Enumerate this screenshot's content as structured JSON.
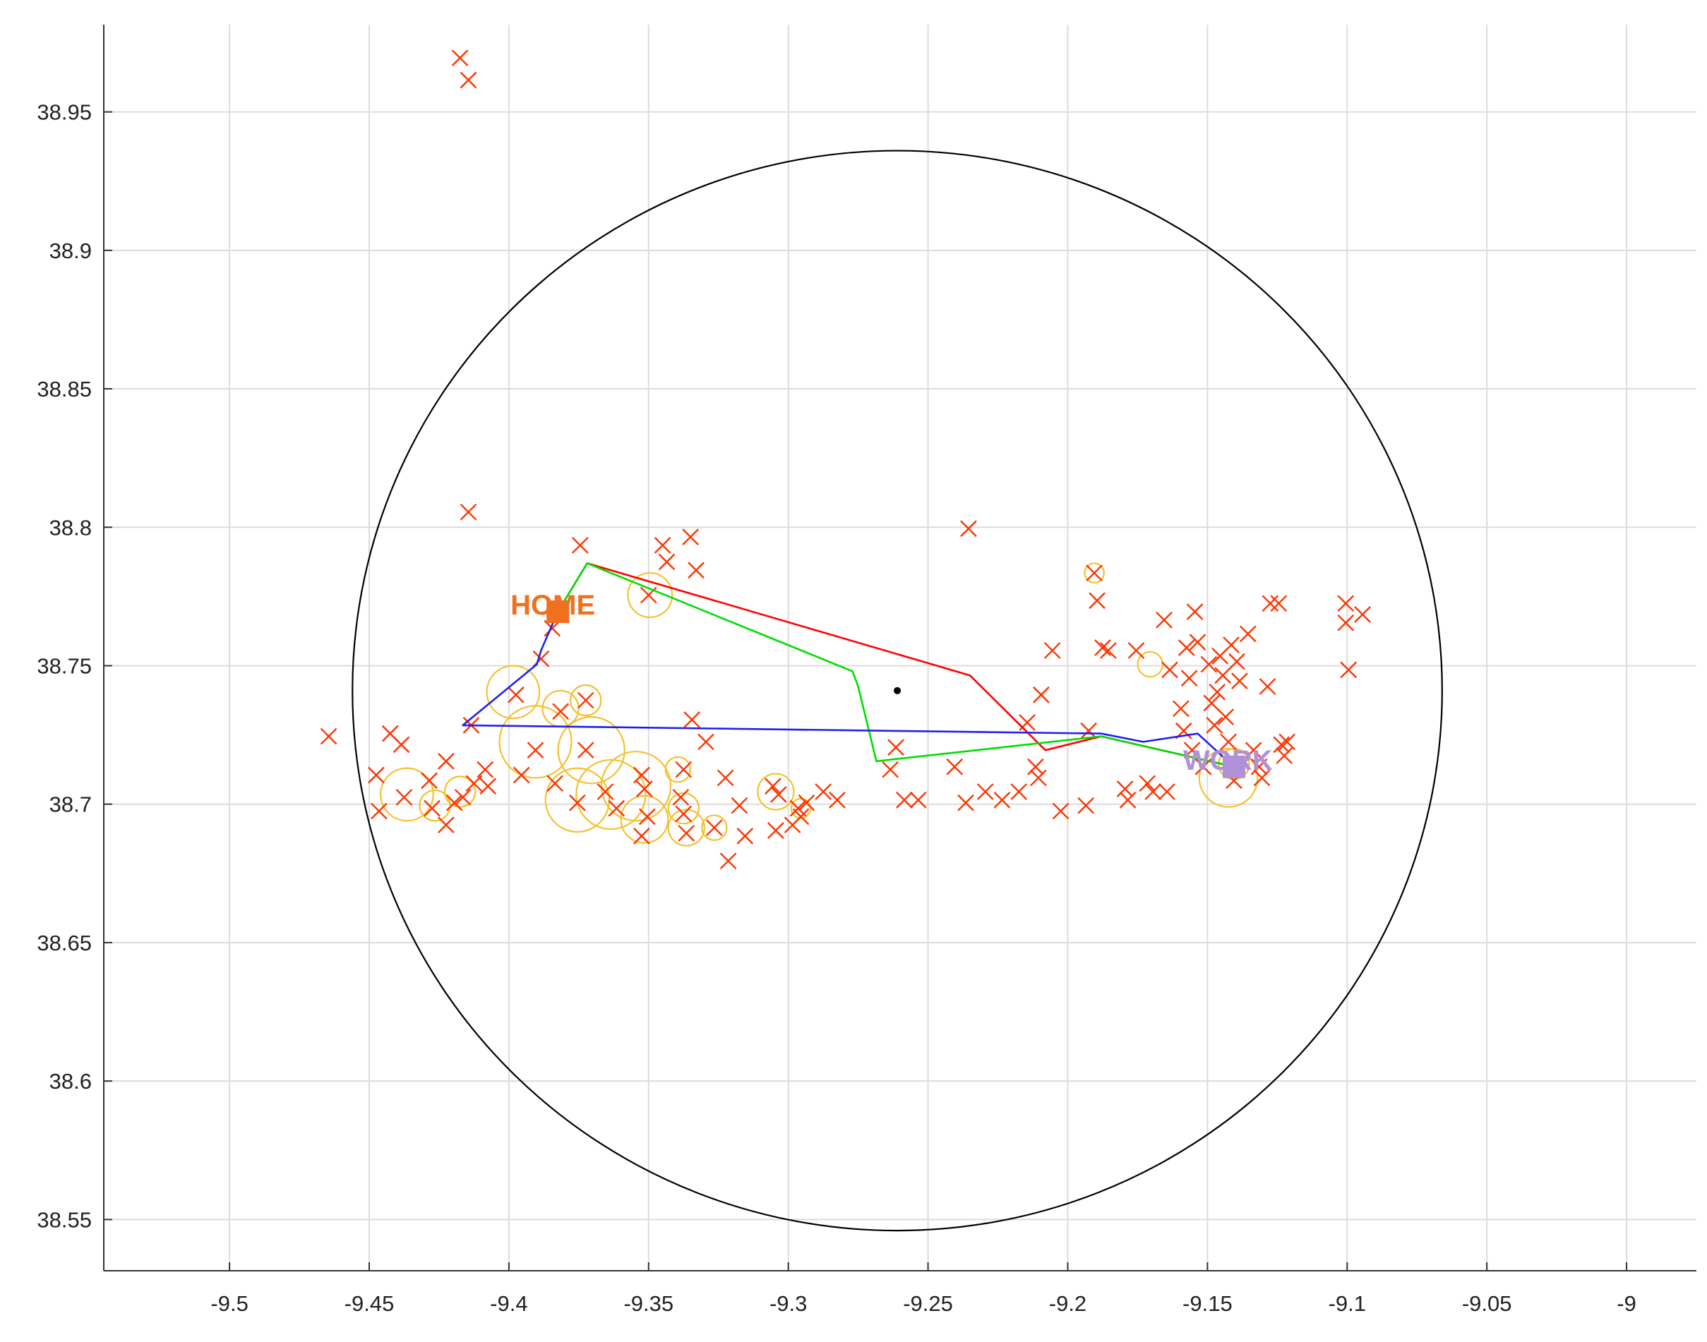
{
  "chart_data": {
    "type": "scatter",
    "title": "",
    "xlabel": "",
    "ylabel": "",
    "xlim": [
      -9.545,
      -8.975
    ],
    "ylim": [
      38.5315,
      38.9815
    ],
    "grid": true,
    "x_ticks": [
      -9.5,
      -9.45,
      -9.4,
      -9.35,
      -9.3,
      -9.25,
      -9.2,
      -9.15,
      -9.1,
      -9.05,
      -9.0
    ],
    "x_tick_labels": [
      "-9.5",
      "-9.45",
      "-9.4",
      "-9.35",
      "-9.3",
      "-9.25",
      "-9.2",
      "-9.15",
      "-9.1",
      "-9.05",
      "-9"
    ],
    "y_ticks": [
      38.55,
      38.6,
      38.65,
      38.7,
      38.75,
      38.8,
      38.85,
      38.9,
      38.95
    ],
    "y_tick_labels": [
      "38.55",
      "38.6",
      "38.65",
      "38.7",
      "38.75",
      "38.8",
      "38.85",
      "38.9",
      "38.95"
    ],
    "colors": {
      "cross": "#ff3300",
      "circle": "#f5c030",
      "big_circle": "#000000",
      "route_red": "#ff0000",
      "route_green": "#00dd00",
      "route_blue": "#2020ee",
      "home": "#f07020",
      "work": "#b090d8",
      "center": "#000000"
    },
    "big_circle": {
      "center": [
        -9.261,
        38.741
      ],
      "radius": 0.195
    },
    "center_point": [
      -9.261,
      38.741
    ],
    "home": {
      "label": "HOME",
      "point": [
        -9.3825,
        38.7695
      ]
    },
    "work": {
      "label": "WORK",
      "point": [
        -9.1405,
        38.7135
      ]
    },
    "routes": [
      {
        "color": "route_red",
        "points": [
          [
            -9.3825,
            38.7695
          ],
          [
            -9.372,
            38.787
          ],
          [
            -9.235,
            38.7465
          ],
          [
            -9.208,
            38.7195
          ],
          [
            -9.188,
            38.7245
          ],
          [
            -9.1405,
            38.7135
          ]
        ]
      },
      {
        "color": "route_green",
        "points": [
          [
            -9.3825,
            38.7695
          ],
          [
            -9.372,
            38.787
          ],
          [
            -9.277,
            38.748
          ],
          [
            -9.275,
            38.7425
          ],
          [
            -9.2685,
            38.7155
          ],
          [
            -9.188,
            38.7245
          ],
          [
            -9.1405,
            38.7135
          ]
        ]
      },
      {
        "color": "route_blue",
        "points": [
          [
            -9.3825,
            38.7695
          ],
          [
            -9.3885,
            38.7555
          ],
          [
            -9.39,
            38.7505
          ],
          [
            -9.4165,
            38.7285
          ],
          [
            -9.188,
            38.7255
          ],
          [
            -9.173,
            38.7225
          ],
          [
            -9.1535,
            38.7255
          ],
          [
            -9.1405,
            38.7135
          ]
        ]
      }
    ],
    "crosses": [
      [
        -9.4175,
        38.9695
      ],
      [
        -9.4145,
        38.9615
      ],
      [
        -9.4145,
        38.8055
      ],
      [
        -9.3745,
        38.7935
      ],
      [
        -9.345,
        38.7935
      ],
      [
        -9.3435,
        38.7875
      ],
      [
        -9.335,
        38.7965
      ],
      [
        -9.333,
        38.7845
      ],
      [
        -9.35,
        38.7755
      ],
      [
        -9.3845,
        38.7635
      ],
      [
        -9.3885,
        38.7525
      ],
      [
        -9.4645,
        38.7245
      ],
      [
        -9.4425,
        38.7255
      ],
      [
        -9.4385,
        38.7215
      ],
      [
        -9.4225,
        38.7155
      ],
      [
        -9.4475,
        38.7105
      ],
      [
        -9.4465,
        38.6975
      ],
      [
        -9.4375,
        38.7025
      ],
      [
        -9.4285,
        38.7085
      ],
      [
        -9.4275,
        38.6985
      ],
      [
        -9.4225,
        38.6925
      ],
      [
        -9.4195,
        38.7005
      ],
      [
        -9.4165,
        38.7025
      ],
      [
        -9.4125,
        38.7075
      ],
      [
        -9.4085,
        38.7125
      ],
      [
        -9.4075,
        38.7065
      ],
      [
        -9.4135,
        38.7285
      ],
      [
        -9.3975,
        38.7395
      ],
      [
        -9.3955,
        38.7105
      ],
      [
        -9.3905,
        38.7195
      ],
      [
        -9.3815,
        38.7335
      ],
      [
        -9.3835,
        38.7075
      ],
      [
        -9.3725,
        38.7375
      ],
      [
        -9.3725,
        38.7195
      ],
      [
        -9.3755,
        38.7005
      ],
      [
        -9.3655,
        38.7045
      ],
      [
        -9.3615,
        38.6985
      ],
      [
        -9.3525,
        38.7105
      ],
      [
        -9.3515,
        38.7055
      ],
      [
        -9.3505,
        38.6955
      ],
      [
        -9.3525,
        38.6885
      ],
      [
        -9.3375,
        38.7125
      ],
      [
        -9.3385,
        38.7025
      ],
      [
        -9.3375,
        38.6965
      ],
      [
        -9.3365,
        38.6895
      ],
      [
        -9.3345,
        38.7305
      ],
      [
        -9.3295,
        38.7225
      ],
      [
        -9.3265,
        38.6915
      ],
      [
        -9.3225,
        38.7095
      ],
      [
        -9.3175,
        38.6995
      ],
      [
        -9.3155,
        38.6885
      ],
      [
        -9.3215,
        38.6795
      ],
      [
        -9.3055,
        38.7065
      ],
      [
        -9.3035,
        38.7035
      ],
      [
        -9.3045,
        38.6905
      ],
      [
        -9.2985,
        38.6925
      ],
      [
        -9.2955,
        38.6955
      ],
      [
        -9.2935,
        38.7005
      ],
      [
        -9.2875,
        38.7045
      ],
      [
        -9.2825,
        38.7015
      ],
      [
        -9.2965,
        38.6985
      ],
      [
        -9.2615,
        38.7205
      ],
      [
        -9.2635,
        38.7125
      ],
      [
        -9.2585,
        38.7015
      ],
      [
        -9.2535,
        38.7015
      ],
      [
        -9.2405,
        38.7135
      ],
      [
        -9.2365,
        38.7005
      ],
      [
        -9.2295,
        38.7045
      ],
      [
        -9.2235,
        38.7015
      ],
      [
        -9.2175,
        38.7045
      ],
      [
        -9.2145,
        38.7295
      ],
      [
        -9.2115,
        38.7135
      ],
      [
        -9.2105,
        38.7095
      ],
      [
        -9.2095,
        38.7395
      ],
      [
        -9.2025,
        38.6975
      ],
      [
        -9.2055,
        38.7555
      ],
      [
        -9.1925,
        38.7265
      ],
      [
        -9.1935,
        38.6995
      ],
      [
        -9.2355,
        38.7995
      ],
      [
        -9.1905,
        38.7835
      ],
      [
        -9.1895,
        38.7735
      ],
      [
        -9.1875,
        38.7565
      ],
      [
        -9.1855,
        38.7555
      ],
      [
        -9.1795,
        38.7055
      ],
      [
        -9.1785,
        38.7015
      ],
      [
        -9.1755,
        38.7555
      ],
      [
        -9.1715,
        38.7075
      ],
      [
        -9.1695,
        38.7045
      ],
      [
        -9.1645,
        38.7045
      ],
      [
        -9.1655,
        38.7665
      ],
      [
        -9.1635,
        38.7485
      ],
      [
        -9.1595,
        38.7345
      ],
      [
        -9.1585,
        38.7265
      ],
      [
        -9.1555,
        38.7195
      ],
      [
        -9.1575,
        38.7565
      ],
      [
        -9.1565,
        38.7455
      ],
      [
        -9.1545,
        38.7695
      ],
      [
        -9.1535,
        38.7585
      ],
      [
        -9.1515,
        38.7135
      ],
      [
        -9.1495,
        38.7505
      ],
      [
        -9.1485,
        38.7365
      ],
      [
        -9.1475,
        38.7285
      ],
      [
        -9.1465,
        38.7405
      ],
      [
        -9.1455,
        38.7535
      ],
      [
        -9.1445,
        38.7465
      ],
      [
        -9.1435,
        38.7315
      ],
      [
        -9.1425,
        38.7225
      ],
      [
        -9.1415,
        38.7575
      ],
      [
        -9.1405,
        38.7085
      ],
      [
        -9.1395,
        38.7515
      ],
      [
        -9.1385,
        38.7445
      ],
      [
        -9.1355,
        38.7615
      ],
      [
        -9.1335,
        38.7195
      ],
      [
        -9.1315,
        38.7135
      ],
      [
        -9.1305,
        38.7095
      ],
      [
        -9.1285,
        38.7425
      ],
      [
        -9.1275,
        38.7725
      ],
      [
        -9.1245,
        38.7725
      ],
      [
        -9.1235,
        38.7215
      ],
      [
        -9.1225,
        38.7175
      ],
      [
        -9.1215,
        38.7225
      ],
      [
        -9.1005,
        38.7725
      ],
      [
        -9.1005,
        38.7655
      ],
      [
        -9.0995,
        38.7485
      ],
      [
        -9.0945,
        38.7685
      ]
    ],
    "circles": [
      [
        -9.4365,
        38.7035,
        0.0095
      ],
      [
        -9.4265,
        38.6995,
        0.0055
      ],
      [
        -9.4175,
        38.7045,
        0.0055
      ],
      [
        -9.3985,
        38.7405,
        0.0095
      ],
      [
        -9.3905,
        38.7225,
        0.013
      ],
      [
        -9.3815,
        38.7345,
        0.0065
      ],
      [
        -9.3705,
        38.7195,
        0.012
      ],
      [
        -9.3725,
        38.7375,
        0.0055
      ],
      [
        -9.3755,
        38.7015,
        0.0115
      ],
      [
        -9.3635,
        38.7035,
        0.0125
      ],
      [
        -9.3545,
        38.7065,
        0.0125
      ],
      [
        -9.3515,
        38.6945,
        0.0085
      ],
      [
        -9.3395,
        38.7125,
        0.0045
      ],
      [
        -9.3375,
        38.6985,
        0.0055
      ],
      [
        -9.3365,
        38.6915,
        0.0065
      ],
      [
        -9.3265,
        38.6915,
        0.0045
      ],
      [
        -9.3495,
        38.7755,
        0.008
      ],
      [
        -9.3045,
        38.7045,
        0.0065
      ],
      [
        -9.2955,
        38.6985,
        0.0035
      ],
      [
        -9.1905,
        38.7835,
        0.0035
      ],
      [
        -9.1705,
        38.7505,
        0.0045
      ],
      [
        -9.1425,
        38.7095,
        0.0105
      ],
      [
        -9.1405,
        38.7145,
        0.0055
      ]
    ]
  }
}
